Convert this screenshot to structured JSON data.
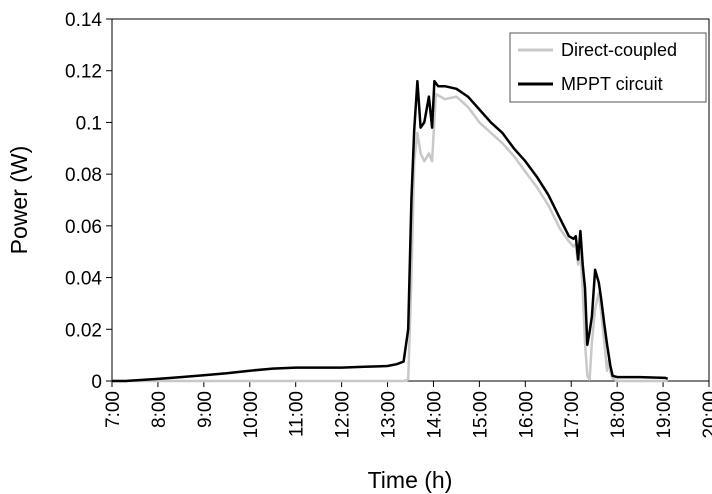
{
  "chart_data": {
    "type": "line",
    "title": "",
    "xlabel": "Time (h)",
    "ylabel": "Power (W)",
    "xlim": [
      7,
      20
    ],
    "ylim": [
      0,
      0.14
    ],
    "x_ticks": [
      7,
      8,
      9,
      10,
      11,
      12,
      13,
      14,
      15,
      16,
      17,
      18,
      19,
      20
    ],
    "x_tick_labels": [
      "7:00",
      "8:00",
      "9:00",
      "10:00",
      "11:00",
      "12:00",
      "13:00",
      "14:00",
      "15:00",
      "16:00",
      "17:00",
      "18:00",
      "19:00",
      "20:00"
    ],
    "y_ticks": [
      0,
      0.02,
      0.04,
      0.06,
      0.08,
      0.1,
      0.12,
      0.14
    ],
    "y_tick_labels": [
      "0",
      "0.02",
      "0.04",
      "0.06",
      "0.08",
      "0.1",
      "0.12",
      "0.14"
    ],
    "grid": false,
    "legend_position": "top-right",
    "series": [
      {
        "name": "Direct-coupled",
        "color": "#c8c8c8",
        "x": [
          7.0,
          13.35,
          13.45,
          13.52,
          13.58,
          13.65,
          13.72,
          13.8,
          13.9,
          13.97,
          14.05,
          14.25,
          14.5,
          14.75,
          15.0,
          15.25,
          15.5,
          15.75,
          16.0,
          16.25,
          16.5,
          16.75,
          16.95,
          17.05,
          17.1,
          17.15,
          17.2,
          17.25,
          17.3,
          17.35,
          17.4,
          17.45,
          17.52,
          17.6,
          17.65,
          17.72,
          17.78,
          17.82,
          17.86,
          17.9,
          18.0,
          18.5,
          19.05,
          19.1
        ],
        "y": [
          0.0,
          0.0,
          0.0005,
          0.04,
          0.085,
          0.096,
          0.088,
          0.085,
          0.088,
          0.085,
          0.111,
          0.109,
          0.11,
          0.106,
          0.1,
          0.096,
          0.092,
          0.087,
          0.081,
          0.075,
          0.068,
          0.059,
          0.054,
          0.052,
          0.053,
          0.045,
          0.05,
          0.035,
          0.015,
          0.002,
          0.0005,
          0.015,
          0.028,
          0.034,
          0.027,
          0.015,
          0.004,
          0.008,
          0.003,
          0.001,
          0.0,
          0.0,
          0.0,
          0.0
        ]
      },
      {
        "name": "MPPT circuit",
        "color": "#000000",
        "x": [
          7.0,
          7.3,
          8.0,
          8.5,
          9.0,
          9.5,
          10.0,
          10.5,
          11.0,
          11.5,
          12.0,
          12.5,
          13.0,
          13.2,
          13.35,
          13.45,
          13.52,
          13.58,
          13.65,
          13.72,
          13.8,
          13.9,
          13.97,
          14.02,
          14.1,
          14.25,
          14.5,
          14.75,
          15.0,
          15.25,
          15.5,
          15.75,
          16.0,
          16.25,
          16.5,
          16.75,
          16.95,
          17.05,
          17.1,
          17.15,
          17.2,
          17.25,
          17.3,
          17.35,
          17.4,
          17.45,
          17.52,
          17.6,
          17.65,
          17.72,
          17.78,
          17.85,
          17.9,
          18.0,
          18.5,
          19.05,
          19.1
        ],
        "y": [
          0.0,
          0.0,
          0.0008,
          0.0015,
          0.0022,
          0.003,
          0.004,
          0.0048,
          0.0052,
          0.0052,
          0.0052,
          0.0055,
          0.0058,
          0.0065,
          0.0075,
          0.02,
          0.07,
          0.097,
          0.116,
          0.098,
          0.1,
          0.11,
          0.098,
          0.116,
          0.114,
          0.114,
          0.113,
          0.11,
          0.105,
          0.1,
          0.096,
          0.09,
          0.085,
          0.079,
          0.072,
          0.063,
          0.056,
          0.055,
          0.056,
          0.047,
          0.058,
          0.045,
          0.036,
          0.014,
          0.019,
          0.025,
          0.043,
          0.038,
          0.032,
          0.022,
          0.014,
          0.006,
          0.002,
          0.0015,
          0.0015,
          0.0012,
          0.0008
        ]
      }
    ]
  }
}
